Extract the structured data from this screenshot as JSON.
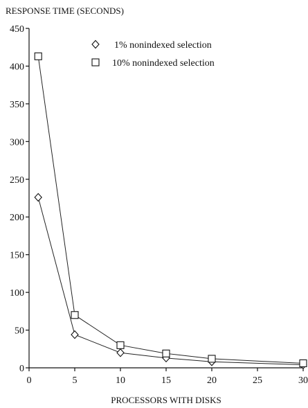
{
  "chart_data": {
    "type": "line",
    "title": "",
    "ylabel": "RESPONSE TIME (SECONDS)",
    "xlabel": "PROCESSORS WITH DISKS",
    "xlim": [
      0,
      30
    ],
    "ylim": [
      0,
      450
    ],
    "xticks": [
      0,
      5,
      10,
      15,
      20,
      25,
      30
    ],
    "yticks": [
      0,
      50,
      100,
      150,
      200,
      250,
      300,
      350,
      400,
      450
    ],
    "grid": false,
    "legend_position": "top-right",
    "series": [
      {
        "name": "1% nonindexed selection",
        "marker": "diamond",
        "x": [
          1,
          5,
          10,
          15,
          20,
          30
        ],
        "y": [
          226,
          44,
          20,
          13,
          8,
          4
        ]
      },
      {
        "name": "10% nonindexed selection",
        "marker": "square",
        "x": [
          1,
          5,
          10,
          15,
          20,
          30
        ],
        "y": [
          413,
          70,
          30,
          19,
          12,
          6
        ]
      }
    ]
  }
}
